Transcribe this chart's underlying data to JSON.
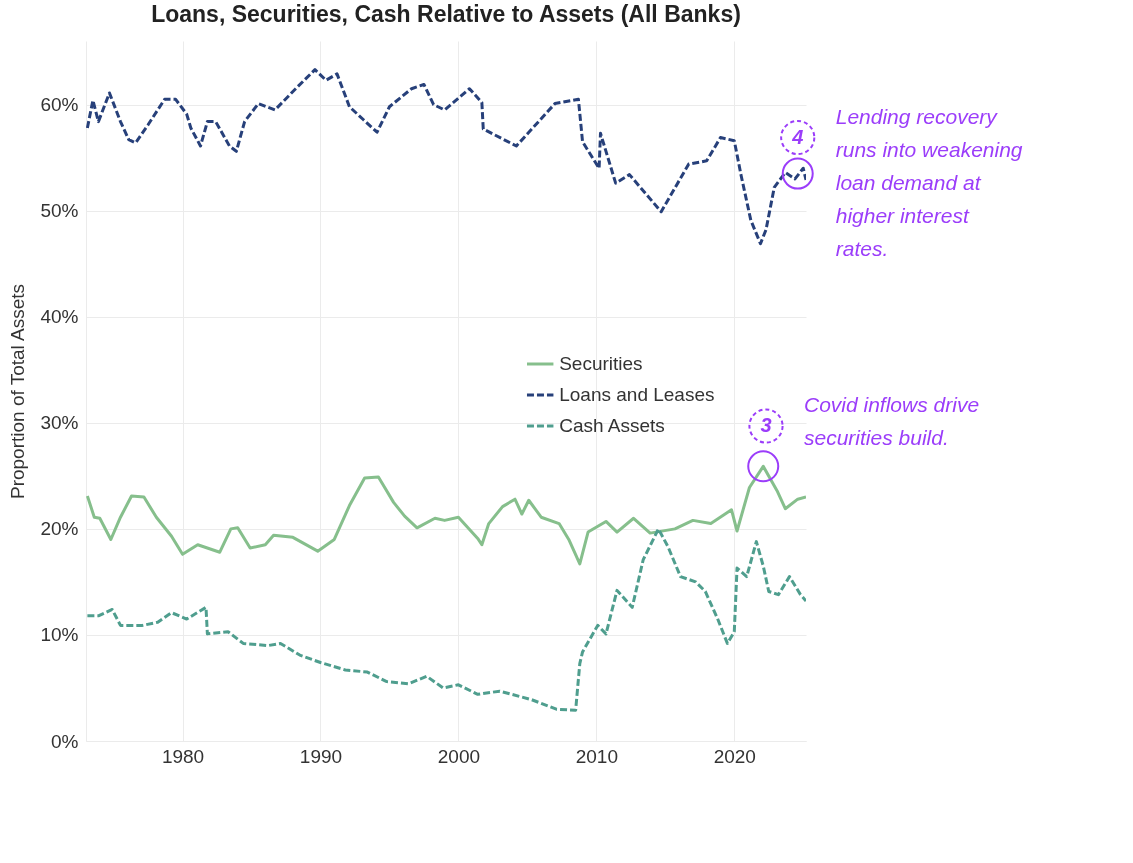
{
  "chart_data": {
    "type": "line",
    "title": "Loans, Securities, Cash Relative to Assets (All Banks)",
    "ylabel": "Proportion of Total Assets",
    "xlim": [
      1973,
      2025.2
    ],
    "xticks": [
      1980,
      1990,
      2000,
      2010,
      2020
    ],
    "ylim": [
      0,
      66
    ],
    "yticks": [
      {
        "value": 0,
        "label": "0%"
      },
      {
        "value": 10,
        "label": "10%"
      },
      {
        "value": 20,
        "label": "20%"
      },
      {
        "value": 30,
        "label": "30%"
      },
      {
        "value": 40,
        "label": "40%"
      },
      {
        "value": 50,
        "label": "50%"
      },
      {
        "value": 60,
        "label": "60%"
      }
    ],
    "grid": true,
    "legend": "right",
    "marker": "none",
    "series": [
      {
        "name": "Securities",
        "color": "#86bf8c",
        "line_style": "solid",
        "x": [
          1973.1,
          1973.6,
          1974,
          1974.8,
          1975.5,
          1976.3,
          1977.2,
          1978.1,
          1979.2,
          1980,
          1981.1,
          1982.7,
          1983.5,
          1984,
          1984.9,
          1986,
          1986.6,
          1988,
          1989.8,
          1991,
          1992.1,
          1993.2,
          1994.2,
          1995.3,
          1996.1,
          1997,
          1998.3,
          1999,
          2000,
          2001.4,
          2001.7,
          2002.2,
          2003.2,
          2004.1,
          2004.6,
          2005.1,
          2006,
          2007.3,
          2008,
          2008.8,
          2009.4,
          2010.7,
          2011.5,
          2012.7,
          2013.9,
          2015.7,
          2017,
          2018.3,
          2019.8,
          2020.2,
          2021.1,
          2022.1,
          2023.1,
          2023.7,
          2024.6,
          2025.2
        ],
        "values": [
          23.1,
          21.1,
          21,
          19.0,
          21.1,
          23.1,
          23.0,
          21.1,
          19.3,
          17.6,
          18.5,
          17.8,
          20.0,
          20.1,
          18.2,
          18.5,
          19.4,
          19.2,
          17.9,
          19.0,
          22.2,
          24.8,
          24.9,
          22.5,
          21.2,
          20.1,
          21.0,
          20.8,
          21.1,
          19.1,
          18.5,
          20.5,
          22.1,
          22.8,
          21.4,
          22.7,
          21.1,
          20.5,
          19.0,
          16.7,
          19.7,
          20.7,
          19.7,
          21.0,
          19.6,
          20.0,
          20.8,
          20.5,
          21.8,
          19.8,
          23.9,
          25.9,
          23.6,
          21.9,
          22.8,
          23.0
        ]
      },
      {
        "name": "Loans and Leases",
        "color": "#27407a",
        "line_style": "dashed",
        "x": [
          1973.1,
          1973.5,
          1973.9,
          1974.7,
          1975.5,
          1976.1,
          1976.6,
          1977.5,
          1978.7,
          1979.5,
          1980.3,
          1980.6,
          1981.3,
          1981.8,
          1982.4,
          1983.4,
          1983.9,
          1984.5,
          1985.5,
          1986.7,
          1988.2,
          1989.6,
          1990.4,
          1991.2,
          1992.1,
          1993.1,
          1994.1,
          1995,
          1996.6,
          1997.5,
          1998.2,
          1999,
          2000.8,
          2001.7,
          2001.8,
          2004.2,
          2007,
          2008.7,
          2009,
          2010.2,
          2010.3,
          2011.4,
          2012.4,
          2014.7,
          2016.7,
          2018,
          2019,
          2020,
          2020.5,
          2021.2,
          2021.9,
          2022.3,
          2022.9,
          2023.7,
          2024.4,
          2025,
          2025.2
        ],
        "values": [
          57.8,
          60.4,
          58.4,
          61.1,
          58.4,
          56.7,
          56.4,
          58.1,
          60.5,
          60.5,
          59.1,
          57.8,
          56.1,
          58.4,
          58.4,
          56.1,
          55.6,
          58.4,
          60.1,
          59.5,
          61.5,
          63.3,
          62.3,
          62.9,
          59.8,
          58.6,
          57.4,
          59.8,
          61.5,
          61.9,
          60.0,
          59.5,
          61.5,
          60.2,
          57.7,
          56.1,
          60.1,
          60.5,
          56.5,
          54,
          57.3,
          52.6,
          53.4,
          49.9,
          54.4,
          54.7,
          56.9,
          56.6,
          53.3,
          49.1,
          46.9,
          48.2,
          52.2,
          53.6,
          53,
          54,
          52.9
        ]
      },
      {
        "name": "Cash Assets",
        "color": "#4f9e8e",
        "line_style": "dashed",
        "x": [
          1973.1,
          1973.9,
          1974.9,
          1975.5,
          1977.1,
          1978.2,
          1979.2,
          1980.3,
          1981.7,
          1981.8,
          1983.3,
          1984.4,
          1986.2,
          1987.1,
          1988.5,
          1990,
          1991.8,
          1993.4,
          1994.8,
          1996.4,
          1997.7,
          1998.9,
          2000,
          2001.4,
          2003,
          2005.3,
          2007.1,
          2008.5,
          2008.8,
          2009,
          2010.1,
          2010.7,
          2011.5,
          2012.6,
          2013.4,
          2014.5,
          2015.2,
          2016.1,
          2017.2,
          2017.9,
          2018.8,
          2019.5,
          2020,
          2020.2,
          2020.9,
          2021.6,
          2022.1,
          2022.5,
          2023.2,
          2024,
          2024.8,
          2025.2
        ],
        "values": [
          11.8,
          11.8,
          12.4,
          10.9,
          10.9,
          11.2,
          12.1,
          11.5,
          12.6,
          10.1,
          10.3,
          9.2,
          9.0,
          9.2,
          8.1,
          7.4,
          6.7,
          6.5,
          5.6,
          5.4,
          6.1,
          5.0,
          5.3,
          4.4,
          4.7,
          3.9,
          3.0,
          2.9,
          7.3,
          8.4,
          10.9,
          10.1,
          14.2,
          12.6,
          17.1,
          20.0,
          18.3,
          15.5,
          15.0,
          14.1,
          11.5,
          9.2,
          10.3,
          16.3,
          15.5,
          18.8,
          16.5,
          14.1,
          13.8,
          15.5,
          13.8,
          13.2
        ]
      }
    ],
    "annotations": [
      {
        "text": "4",
        "x": 2024.6,
        "y": 56.9
      },
      {
        "text": "Lending recovery runs into weakening loan demand at higher interest rates.",
        "x": 2024.6,
        "y": 53.5
      },
      {
        "text": "3",
        "x": 2022.3,
        "y": 29.7
      },
      {
        "text": "Covid inflows drive securities build.",
        "x": 2022.1,
        "y": 25.9
      }
    ]
  }
}
